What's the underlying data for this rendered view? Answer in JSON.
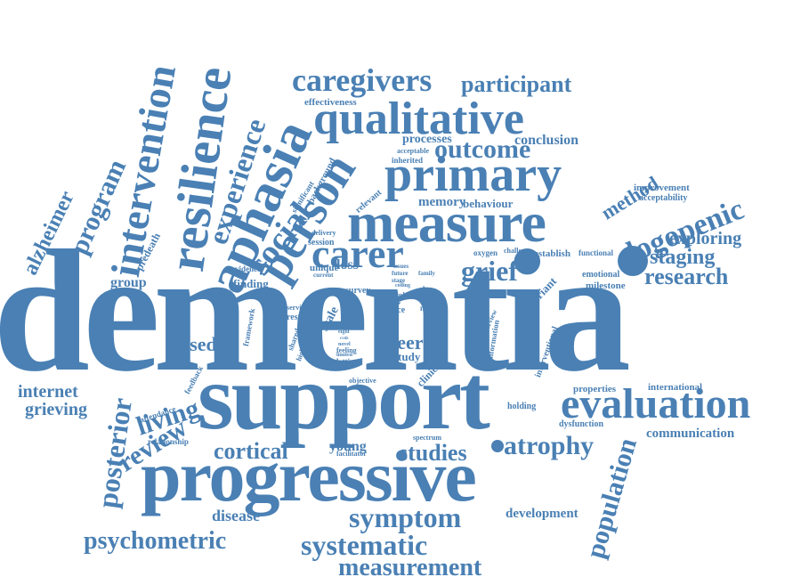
{
  "color": "#4a80b4",
  "words": {
    "dementia": "dementia",
    "support": "support",
    "progressive": "progressive",
    "measure": "measure",
    "primary": "primary",
    "qualitative": "qualitative",
    "person": "person",
    "aphasia": "aphasia",
    "resilience": "resilience",
    "intervention": "intervention",
    "evaluation": "evaluation",
    "carer": "carer",
    "caregivers": "caregivers",
    "participant": "participant",
    "outcome": "outcome",
    "logopenic": "logopenic",
    "experience": "experience",
    "social": "social",
    "symptom": "symptom",
    "systematic": "systematic",
    "psychometric": "psychometric",
    "measurement": "measurement",
    "atrophy": "atrophy",
    "studies": "studies",
    "cortical": "cortical",
    "research": "research",
    "staging": "staging",
    "exploring": "exploring",
    "grief": "grief",
    "population": "population",
    "posterior": "posterior",
    "review": "review",
    "living": "living",
    "program": "program",
    "alzheimer": "alzheimer",
    "based": "based",
    "internet": "internet",
    "grieving": "grieving",
    "disease": "disease",
    "young": "young",
    "peer": "peer",
    "method": "method",
    "development": "development",
    "communication": "communication",
    "memory": "memory",
    "behaviour": "behaviour",
    "conclusion": "conclusion",
    "processes": "processes",
    "effectiveness": "effectiveness",
    "improvement": "improvement",
    "acceptability": "acceptability",
    "predeath": "predeath",
    "group": "group",
    "finding": "finding",
    "evidence": "evidence",
    "session": "session",
    "unique": "unique",
    "loss": "loss",
    "establish": "establish",
    "functional": "functional",
    "emotional": "emotional",
    "milestone": "milestone",
    "variant": "variant",
    "data": "data",
    "survey": "survey",
    "scale": "scale",
    "rater": "rater",
    "face": "face",
    "properties": "properties",
    "international": "international",
    "holding": "holding",
    "dysfunction": "dysfunction",
    "clinical": "clinical",
    "study": "study",
    "lvppa": "lvppa",
    "framework": "framework",
    "result": "result",
    "service": "service",
    "shared": "shared",
    "letting": "letting",
    "feeling": "feeling",
    "objective": "objective",
    "attendance": "attendance",
    "relationship": "relationship",
    "feedback": "feedback",
    "facilitator": "facilitator",
    "spectrum": "spectrum",
    "plwd": "plwd",
    "information": "information",
    "interventional": "interventional",
    "interview": "interview",
    "mixed": "mixed",
    "oxygen": "oxygen",
    "challenge": "challenge",
    "inherited": "inherited",
    "acceptable": "acceptable",
    "relevant": "relevant",
    "background": "background",
    "significant": "significant",
    "delivery": "delivery",
    "current": "current",
    "future": "future",
    "coding": "coding",
    "family": "family",
    "stage": "stage",
    "issues": "issues",
    "eight": "eight",
    "novel": "novel",
    "limited": "limited",
    "highlight": "highlight",
    "cvds": "cvds"
  }
}
